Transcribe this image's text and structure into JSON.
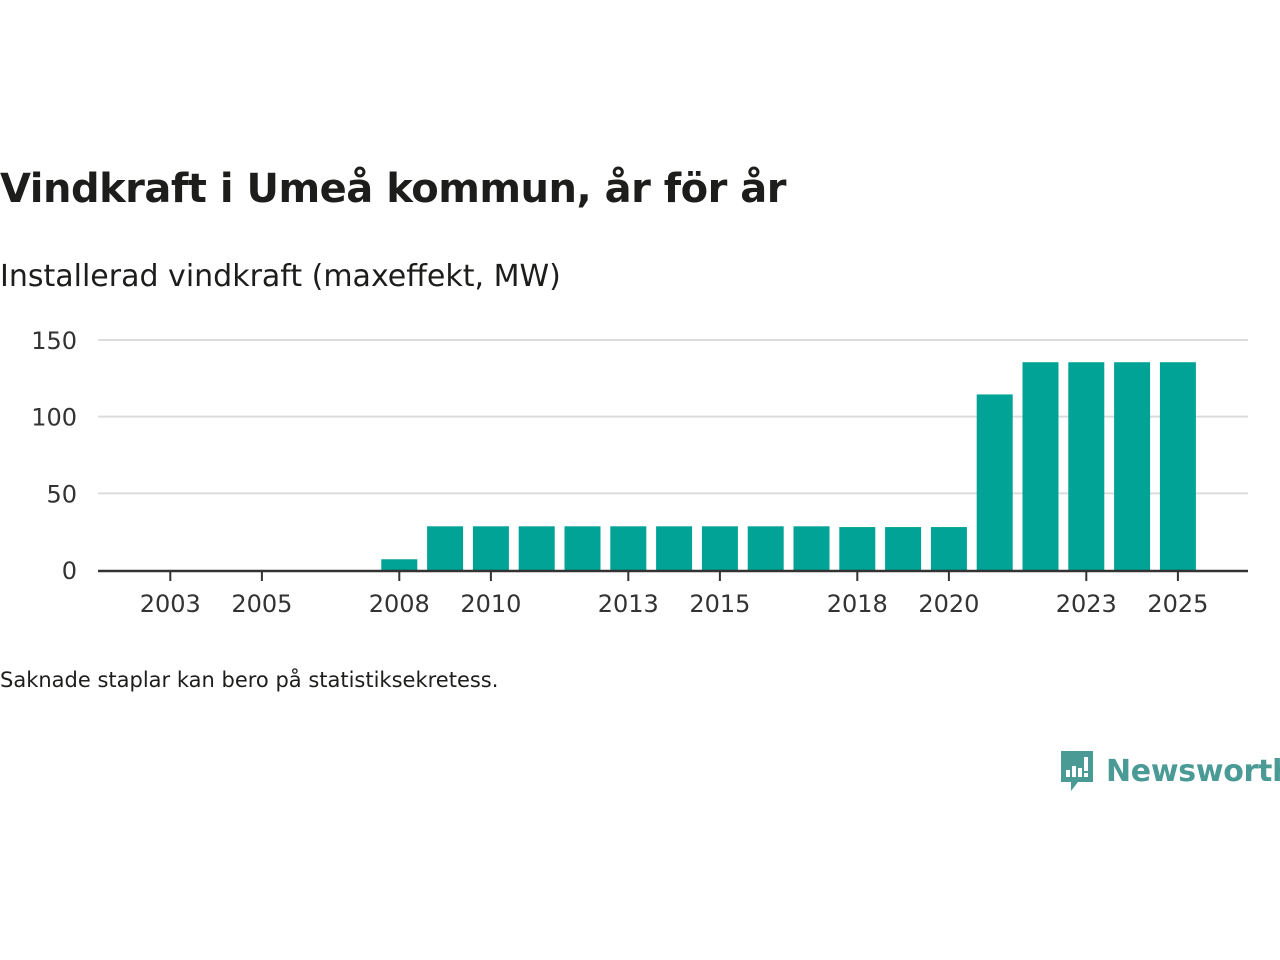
{
  "title": "Vindkraft i Umeå kommun, år för år",
  "subtitle": "Installerad vindkraft (maxeffekt, MW)",
  "footnote": "Saknade staplar kan bero på statistiksekretess.",
  "brand": {
    "name": "Newsworthy",
    "color": "#4a9a95"
  },
  "colors": {
    "bar": "#00a396",
    "grid": "#dcdcdc",
    "axis": "#333333",
    "tick_text": "#333333"
  },
  "chart_data": {
    "type": "bar",
    "title": "Vindkraft i Umeå kommun, år för år",
    "ylabel": "Installerad vindkraft (maxeffekt, MW)",
    "xlabel": "",
    "categories": [
      "2002",
      "2003",
      "2004",
      "2005",
      "2006",
      "2007",
      "2008",
      "2009",
      "2010",
      "2011",
      "2012",
      "2013",
      "2014",
      "2015",
      "2016",
      "2017",
      "2018",
      "2019",
      "2020",
      "2021",
      "2022",
      "2023",
      "2024",
      "2025"
    ],
    "values": [
      0,
      0,
      0,
      0,
      0,
      0,
      7,
      28.5,
      28.5,
      28.5,
      28.5,
      28.5,
      28.5,
      28.5,
      28.5,
      28.5,
      28,
      28,
      28,
      114.5,
      135.5,
      135.5,
      135.5,
      135.5
    ],
    "x_tick_labels": [
      "2003",
      "2005",
      "2008",
      "2010",
      "2013",
      "2015",
      "2018",
      "2020",
      "2023",
      "2025"
    ],
    "y_ticks": [
      0,
      50,
      100,
      150
    ],
    "ylim": [
      0,
      150
    ],
    "grid": true,
    "legend": "none"
  }
}
